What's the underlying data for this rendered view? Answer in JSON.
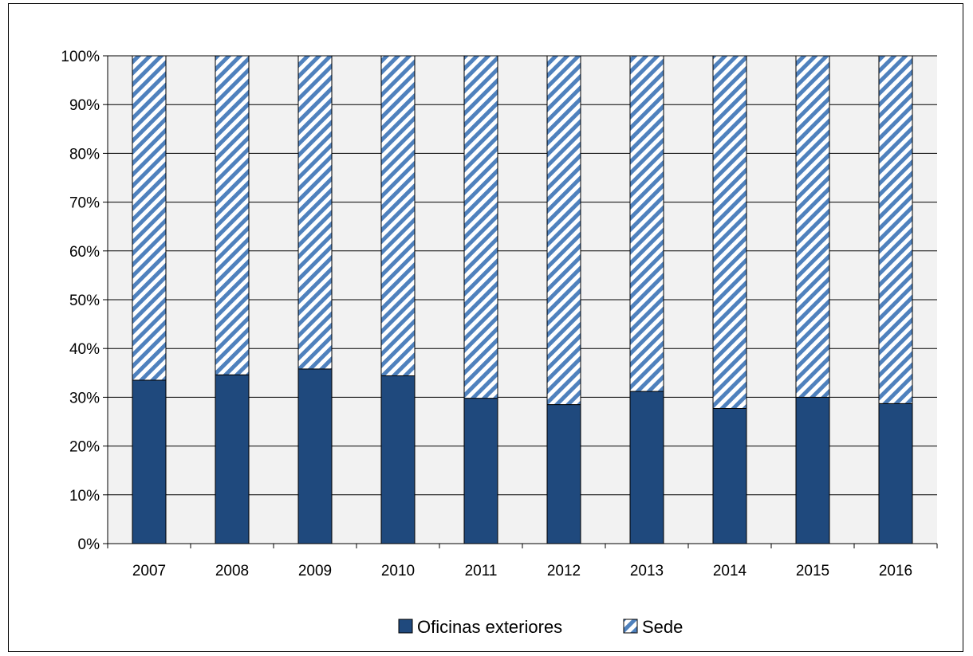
{
  "chart_data": {
    "type": "bar",
    "stacked": true,
    "categories": [
      "2007",
      "2008",
      "2009",
      "2010",
      "2011",
      "2012",
      "2013",
      "2014",
      "2015",
      "2016"
    ],
    "series": [
      {
        "name": "Oficinas exteriores",
        "values": [
          33.5,
          34.6,
          35.8,
          34.4,
          29.8,
          28.5,
          31.2,
          27.7,
          30.0,
          28.7
        ],
        "color": "#1f497d",
        "pattern": "solid"
      },
      {
        "name": "Sede",
        "values": [
          66.5,
          65.4,
          64.2,
          65.6,
          70.2,
          71.5,
          68.8,
          72.3,
          70.0,
          71.3
        ],
        "color": "#4f81bd",
        "pattern": "diagonal-stripes"
      }
    ],
    "y_ticks": [
      "0%",
      "10%",
      "20%",
      "30%",
      "40%",
      "50%",
      "60%",
      "70%",
      "80%",
      "90%",
      "100%"
    ],
    "ylim": [
      0,
      100
    ],
    "y_unit": "%",
    "title": "",
    "xlabel": "",
    "ylabel": "",
    "grid": true,
    "plot_background": "#f2f2f2",
    "legend_position": "bottom"
  }
}
